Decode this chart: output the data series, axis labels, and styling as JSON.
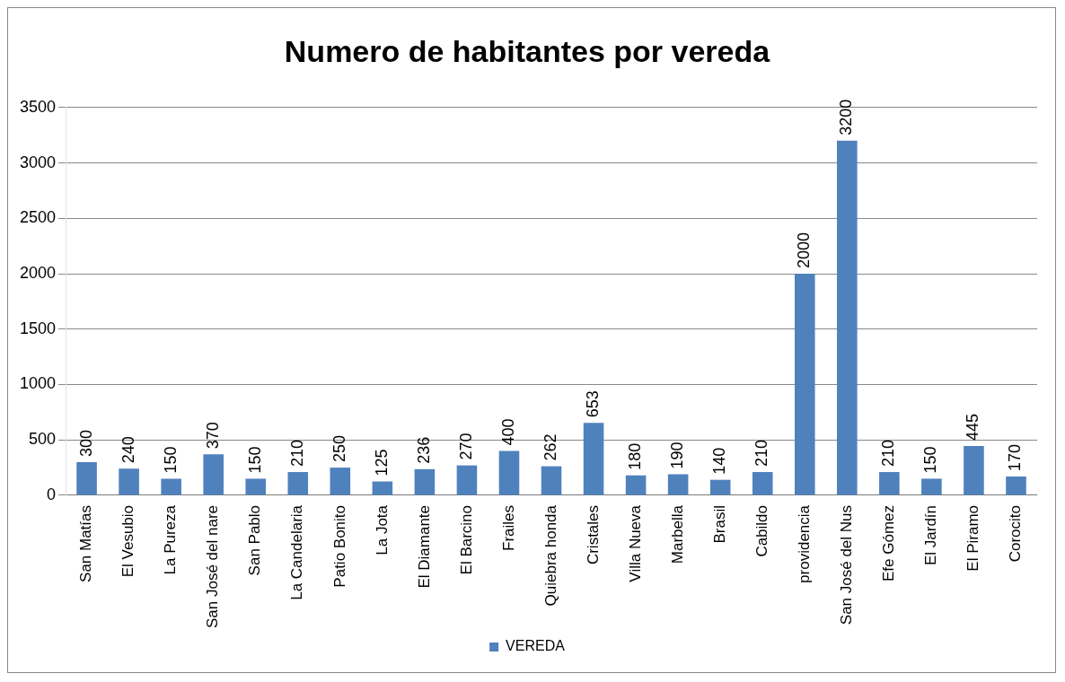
{
  "chart_data": {
    "type": "bar",
    "title": "Numero de habitantes por vereda",
    "categories": [
      "San Matías",
      "El Vesubio",
      "La Pureza",
      "San José del nare",
      "San Pablo",
      "La Candelaria",
      "Patio Bonito",
      "La Jota",
      "El Diamante",
      "El Barcino",
      "Frailes",
      "Quiebra honda",
      "Cristales",
      "Villa Nueva",
      "Marbella",
      "Brasil",
      "Cabildo",
      "providencia",
      "San José del Nus",
      "Efe Gómez",
      "El Jardín",
      "El Piramo",
      "Corocito"
    ],
    "series": [
      {
        "name": "VEREDA",
        "color": "#4f81bd",
        "values": [
          300,
          240,
          150,
          370,
          150,
          210,
          250,
          125,
          236,
          270,
          400,
          262,
          653,
          180,
          190,
          140,
          210,
          2000,
          3200,
          210,
          150,
          445,
          170
        ]
      }
    ],
    "ylim": [
      0,
      3500
    ],
    "yticks": [
      0,
      500,
      1000,
      1500,
      2000,
      2500,
      3000,
      3500
    ],
    "grid": "y",
    "legend": "bottom",
    "data_labels": true
  }
}
